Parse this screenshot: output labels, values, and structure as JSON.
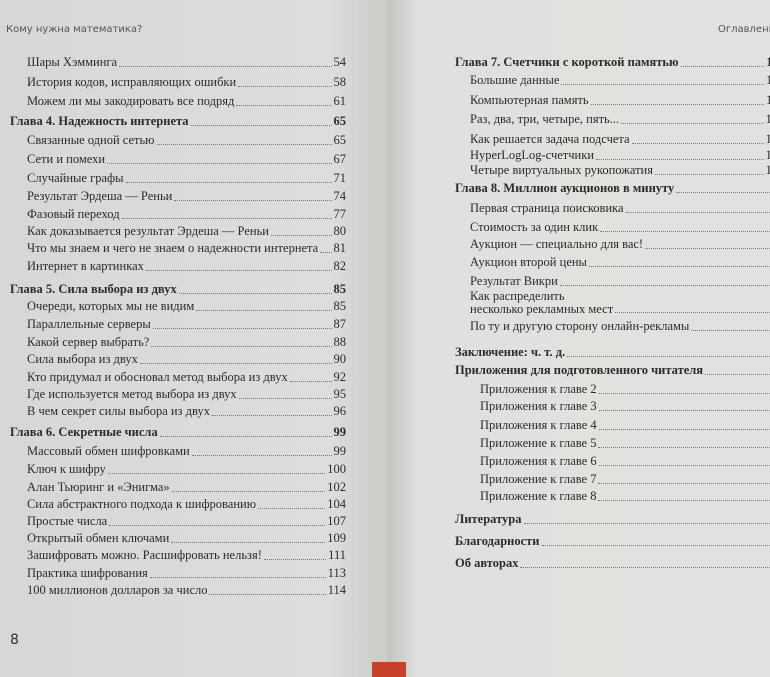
{
  "left_page": {
    "running_head": "Кому нужна математика?",
    "folio": "8",
    "entries": [
      {
        "title": "Шары Хэмминга",
        "page": "54",
        "level": 2
      },
      {
        "title": "История кодов, исправляющих ошибки",
        "page": "58",
        "level": 2
      },
      {
        "title": "Можем ли мы закодировать все подряд",
        "page": "61",
        "level": 2
      },
      {
        "title": "Глава 4. Надежность интернета",
        "page": "65",
        "level": 1
      },
      {
        "title": "Связанные одной сетью",
        "page": "65",
        "level": 2
      },
      {
        "title": "Сети и помехи",
        "page": "67",
        "level": 2
      },
      {
        "title": "Случайные графы",
        "page": "71",
        "level": 2
      },
      {
        "title": "Результат Эрдеша — Реньи",
        "page": "74",
        "level": 2
      },
      {
        "title": "Фазовый переход",
        "page": "77",
        "level": 2
      },
      {
        "title": "Как доказывается результат Эрдеша — Реньи",
        "page": "80",
        "level": 2
      },
      {
        "title": "Что мы знаем и чего не знаем о надежности интернета",
        "page": "81",
        "level": 2
      },
      {
        "title": "Интернет в картинках",
        "page": "82",
        "level": 2
      },
      {
        "title": "Глава 5. Сила выбора из двух",
        "page": "85",
        "level": 1
      },
      {
        "title": "Очереди, которых мы не видим",
        "page": "85",
        "level": 2
      },
      {
        "title": "Параллельные серверы",
        "page": "87",
        "level": 2
      },
      {
        "title": "Какой сервер выбрать?",
        "page": "88",
        "level": 2
      },
      {
        "title": "Сила выбора из двух",
        "page": "90",
        "level": 2
      },
      {
        "title": "Кто придумал и обосновал метод выбора из двух",
        "page": "92",
        "level": 2
      },
      {
        "title": "Где используется метод выбора из двух",
        "page": "95",
        "level": 2
      },
      {
        "title": "В чем секрет силы выбора из двух",
        "page": "96",
        "level": 2
      },
      {
        "title": "Глава 6. Секретные числа",
        "page": "99",
        "level": 1
      },
      {
        "title": "Массовый обмен шифровками",
        "page": "99",
        "level": 2
      },
      {
        "title": "Ключ к шифру",
        "page": "100",
        "level": 2
      },
      {
        "title": "Алан Тьюринг и «Энигма»",
        "page": "102",
        "level": 2
      },
      {
        "title": "Сила абстрактного подхода к шифрованию",
        "page": "104",
        "level": 2
      },
      {
        "title": "Простые числа",
        "page": "107",
        "level": 2
      },
      {
        "title": "Открытый обмен ключами",
        "page": "109",
        "level": 2
      },
      {
        "title": "Зашифровать можно. Расшифровать нельзя!",
        "page": "111",
        "level": 2
      },
      {
        "title": "Практика шифрования",
        "page": "113",
        "level": 2
      },
      {
        "title": "100 миллионов долларов за число",
        "page": "114",
        "level": 2
      }
    ]
  },
  "right_page": {
    "running_head": "Оглавлени",
    "entries": [
      {
        "title": "Глава 7. Счетчики с короткой памятью",
        "page": "11",
        "level": 1
      },
      {
        "title": "Большие данные",
        "page": "11",
        "level": 2
      },
      {
        "title": "Компьютерная память",
        "page": "11",
        "level": 2
      },
      {
        "title": "Раз, два, три, четыре, пять...",
        "page": "12",
        "level": 2
      },
      {
        "title": "Как решается задача подсчета",
        "page": "12",
        "level": 2
      },
      {
        "title": "HyperLogLog-счетчики",
        "page": "12",
        "level": 2
      },
      {
        "title": "Четыре виртуальных рукопожатия",
        "page": "12",
        "level": 2
      },
      {
        "title": "Глава 8. Миллион аукционов в минуту",
        "page": "1",
        "level": 1
      },
      {
        "title": "Первая страница поисковика",
        "page": "1",
        "level": 2
      },
      {
        "title": "Стоимость за один клик",
        "page": "1",
        "level": 2
      },
      {
        "title": "Аукцион — специально для вас!",
        "page": "1",
        "level": 2
      },
      {
        "title": "Аукцион второй цены",
        "page": "1",
        "level": 2
      },
      {
        "title": "Результат Викри",
        "page": "1",
        "level": 2
      },
      {
        "title": "Как распределить\nнесколько рекламных мест",
        "page": "1",
        "level": 2
      },
      {
        "title": "По ту и другую сторону онлайн-рекламы",
        "page": "1",
        "level": 2
      },
      {
        "title": "Заключение: ч. т. д.",
        "page": "",
        "level": 1
      },
      {
        "title": "Приложения для подготовленного читателя",
        "page": "",
        "level": 1
      },
      {
        "title": "Приложения к главе 2",
        "page": "",
        "level": 3
      },
      {
        "title": "Приложения к главе 3",
        "page": "",
        "level": 3
      },
      {
        "title": "Приложения к главе 4",
        "page": "",
        "level": 3
      },
      {
        "title": "Приложение к главе 5",
        "page": "",
        "level": 3
      },
      {
        "title": "Приложения к главе 6",
        "page": "",
        "level": 3
      },
      {
        "title": "Приложение к главе 7",
        "page": "",
        "level": 3
      },
      {
        "title": "Приложение к главе 8",
        "page": "",
        "level": 3
      },
      {
        "title": "Литература",
        "page": "",
        "level": 1
      },
      {
        "title": "Благодарности",
        "page": "",
        "level": 1
      },
      {
        "title": "Об авторах",
        "page": "",
        "level": 1
      }
    ]
  }
}
